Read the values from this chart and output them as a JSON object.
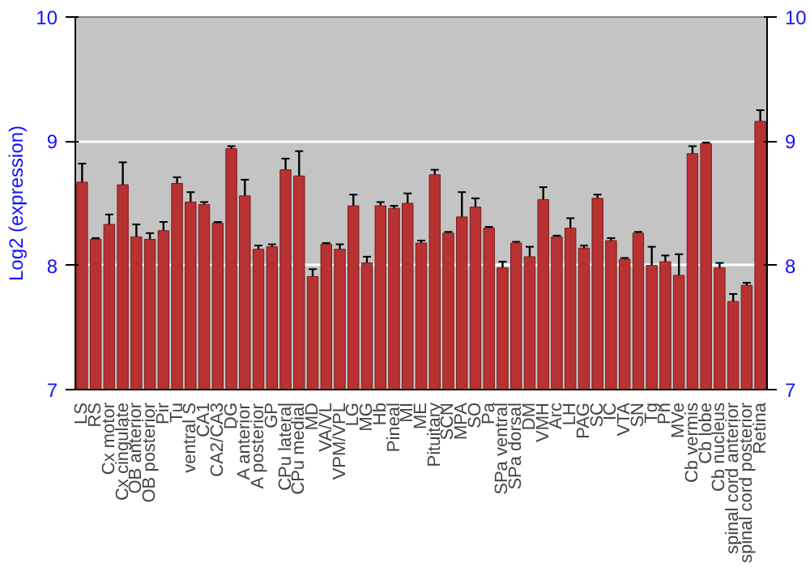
{
  "chart_data": {
    "type": "bar",
    "ylabel": "Log2 (expression)",
    "categories": [
      "LS",
      "RS",
      "Cx motor",
      "Cx cingulate",
      "OB anterior",
      "OB posterior",
      "Pir",
      "Tu",
      "ventral S",
      "CA1",
      "CA2/CA3",
      "DG",
      "A anterior",
      "A posterior",
      "GP",
      "CPu lateral",
      "CPu medial",
      "MD",
      "VA/VL",
      "VPM/VPL",
      "LG",
      "MG",
      "Hb",
      "Pineal",
      "MI",
      "ME",
      "Pituitary",
      "SCN",
      "MPA",
      "SO",
      "Pa",
      "SPa ventral",
      "SPa dorsal",
      "DM",
      "VMH",
      "Arc",
      "LH",
      "PAG",
      "SC",
      "IC",
      "VTA",
      "SN",
      "Tg",
      "Pn",
      "MVe",
      "Cb vermis",
      "Cb lobe",
      "Cb nucleus",
      "spinal cord anterior",
      "spinal cord posterior",
      "Retina"
    ],
    "values": [
      8.67,
      8.21,
      8.33,
      8.65,
      8.23,
      8.21,
      8.28,
      8.66,
      8.51,
      8.49,
      8.34,
      8.94,
      8.56,
      8.13,
      8.15,
      8.77,
      8.72,
      7.91,
      8.17,
      8.13,
      8.48,
      8.02,
      8.48,
      8.46,
      8.5,
      8.18,
      8.73,
      8.26,
      8.39,
      8.47,
      8.3,
      7.98,
      8.18,
      8.07,
      8.53,
      8.23,
      8.3,
      8.14,
      8.54,
      8.2,
      8.05,
      8.26,
      8.0,
      8.03,
      7.92,
      8.9,
      8.98,
      7.98,
      7.71,
      7.84,
      9.16
    ],
    "errors": [
      0.15,
      0.01,
      0.08,
      0.18,
      0.1,
      0.05,
      0.07,
      0.05,
      0.08,
      0.02,
      0.01,
      0.02,
      0.13,
      0.03,
      0.02,
      0.09,
      0.2,
      0.06,
      0.01,
      0.04,
      0.09,
      0.05,
      0.03,
      0.02,
      0.08,
      0.02,
      0.04,
      0.01,
      0.2,
      0.07,
      0.01,
      0.05,
      0.01,
      0.08,
      0.1,
      0.01,
      0.08,
      0.02,
      0.03,
      0.02,
      0.01,
      0.01,
      0.15,
      0.05,
      0.17,
      0.06,
      0.01,
      0.04,
      0.06,
      0.02,
      0.09
    ],
    "color": "#b83232",
    "ylim": [
      7,
      10
    ],
    "yticks": [
      7,
      8,
      9,
      10
    ],
    "y2lim": [
      7,
      10
    ],
    "y2ticks": [
      7,
      8,
      9,
      10
    ],
    "grid": "y"
  }
}
